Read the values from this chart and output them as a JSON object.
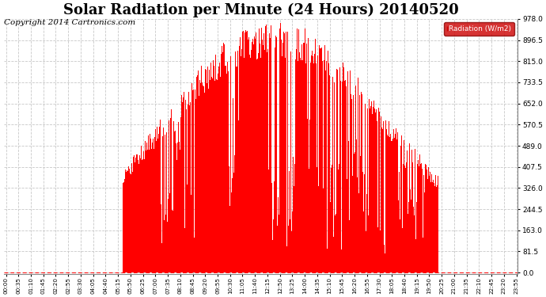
{
  "title": "Solar Radiation per Minute (24 Hours) 20140520",
  "copyright": "Copyright 2014 Cartronics.com",
  "legend_label": "Radiation (W/m2)",
  "yticks": [
    0.0,
    81.5,
    163.0,
    244.5,
    326.0,
    407.5,
    489.0,
    570.5,
    652.0,
    733.5,
    815.0,
    896.5,
    978.0
  ],
  "ymax": 978.0,
  "ymin": 0.0,
  "bar_color": "#FF0000",
  "background_color": "#FFFFFF",
  "grid_color": "#C8C8C8",
  "title_fontsize": 13,
  "copyright_fontsize": 7.5,
  "legend_bg": "#CC0000",
  "legend_text_color": "#FFFFFF",
  "tick_step": 35,
  "sunrise_min": 328,
  "sunset_min": 1215,
  "solar_noon": 750,
  "peak_radiation": 978.0,
  "figwidth": 6.9,
  "figheight": 3.75,
  "dpi": 100
}
